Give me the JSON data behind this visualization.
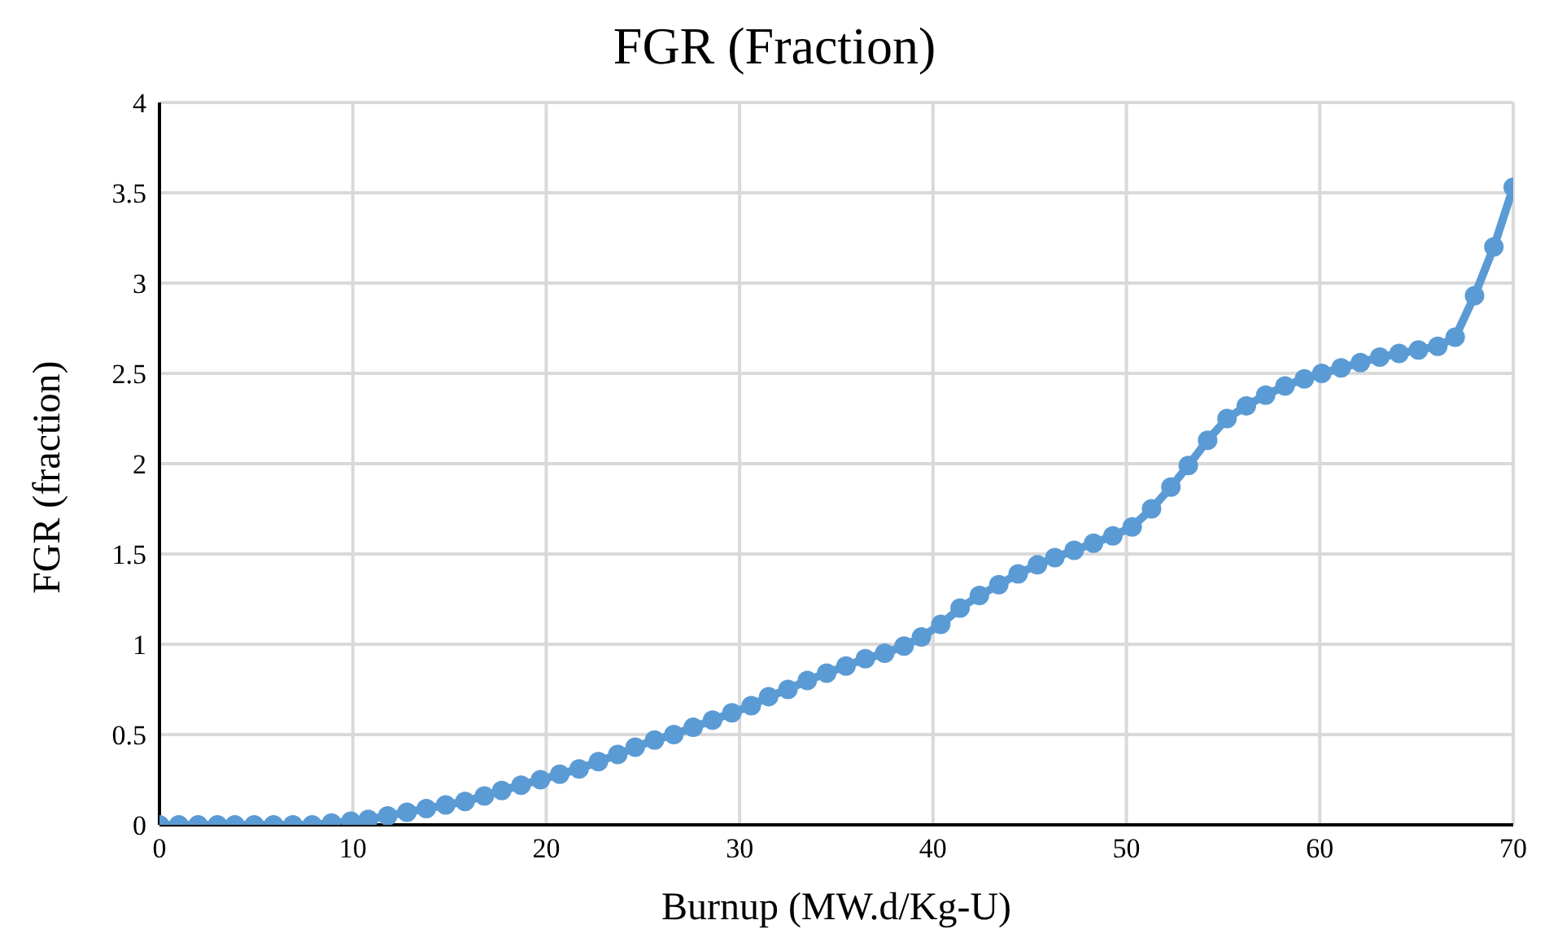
{
  "chart_data": {
    "type": "line",
    "title": "FGR (Fraction)",
    "xlabel": "Burnup (MW.d/Kg-U)",
    "ylabel": "FGR (fraction)",
    "x": [
      0,
      1.0,
      2.0,
      3.0,
      3.9,
      4.9,
      5.9,
      6.9,
      7.9,
      8.9,
      9.9,
      10.8,
      11.8,
      12.8,
      13.8,
      14.8,
      15.8,
      16.8,
      17.7,
      18.7,
      19.7,
      20.7,
      21.7,
      22.7,
      23.7,
      24.6,
      25.6,
      26.6,
      27.6,
      28.6,
      29.6,
      30.6,
      31.5,
      32.5,
      33.5,
      34.5,
      35.5,
      36.5,
      37.5,
      38.5,
      39.4,
      40.4,
      41.4,
      42.4,
      43.4,
      44.4,
      45.4,
      46.3,
      47.3,
      48.3,
      49.3,
      50.3,
      51.3,
      52.3,
      53.2,
      54.2,
      55.2,
      56.2,
      57.2,
      58.2,
      59.2,
      60.1,
      61.1,
      62.1,
      63.1,
      64.1,
      65.1,
      66.1,
      67.0,
      68.0,
      69.0,
      70
    ],
    "series": [
      {
        "color": "#5b9bd5",
        "values": [
          0,
          0,
          0,
          0,
          0,
          0,
          0,
          0,
          0,
          0.01,
          0.02,
          0.03,
          0.05,
          0.07,
          0.09,
          0.11,
          0.13,
          0.16,
          0.19,
          0.22,
          0.25,
          0.28,
          0.31,
          0.35,
          0.39,
          0.43,
          0.47,
          0.5,
          0.54,
          0.58,
          0.62,
          0.66,
          0.71,
          0.75,
          0.8,
          0.84,
          0.88,
          0.92,
          0.95,
          0.99,
          1.04,
          1.11,
          1.2,
          1.27,
          1.33,
          1.39,
          1.44,
          1.48,
          1.52,
          1.56,
          1.6,
          1.65,
          1.75,
          1.87,
          1.99,
          2.13,
          2.25,
          2.32,
          2.38,
          2.43,
          2.47,
          2.5,
          2.53,
          2.56,
          2.59,
          2.61,
          2.63,
          2.65,
          2.7,
          2.93,
          3.2,
          3.53
        ]
      }
    ],
    "xlim": [
      0,
      70
    ],
    "xticks": [
      0,
      10,
      20,
      30,
      40,
      50,
      60,
      70
    ],
    "ylim": [
      0,
      4
    ],
    "yticks": [
      0,
      0.5,
      1,
      1.5,
      2,
      2.5,
      3,
      3.5,
      4
    ],
    "grid": true,
    "marker": "circle",
    "line_style": "solid"
  }
}
